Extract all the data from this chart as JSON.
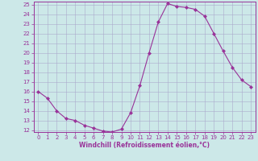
{
  "x": [
    0,
    1,
    2,
    3,
    4,
    5,
    6,
    7,
    8,
    9,
    10,
    11,
    12,
    13,
    14,
    15,
    16,
    17,
    18,
    19,
    20,
    21,
    22,
    23
  ],
  "y": [
    16.0,
    15.3,
    14.0,
    13.2,
    13.0,
    12.5,
    12.2,
    11.9,
    11.8,
    12.1,
    13.8,
    16.6,
    20.0,
    23.2,
    25.1,
    24.8,
    24.7,
    24.5,
    23.8,
    22.0,
    20.2,
    18.5,
    17.2,
    16.5
  ],
  "line_color": "#993399",
  "marker": "D",
  "marker_size": 2.0,
  "bg_color": "#cce8e8",
  "grid_color": "#aaaacc",
  "xlabel": "Windchill (Refroidissement éolien,°C)",
  "xlabel_color": "#993399",
  "tick_color": "#993399",
  "spine_color": "#993399",
  "ylim": [
    11.8,
    25.3
  ],
  "xlim": [
    -0.5,
    23.5
  ],
  "yticks": [
    12,
    13,
    14,
    15,
    16,
    17,
    18,
    19,
    20,
    21,
    22,
    23,
    24,
    25
  ],
  "xticks": [
    0,
    1,
    2,
    3,
    4,
    5,
    6,
    7,
    8,
    9,
    10,
    11,
    12,
    13,
    14,
    15,
    16,
    17,
    18,
    19,
    20,
    21,
    22,
    23
  ],
  "tick_fontsize": 5.0,
  "xlabel_fontsize": 5.5,
  "linewidth": 0.8
}
